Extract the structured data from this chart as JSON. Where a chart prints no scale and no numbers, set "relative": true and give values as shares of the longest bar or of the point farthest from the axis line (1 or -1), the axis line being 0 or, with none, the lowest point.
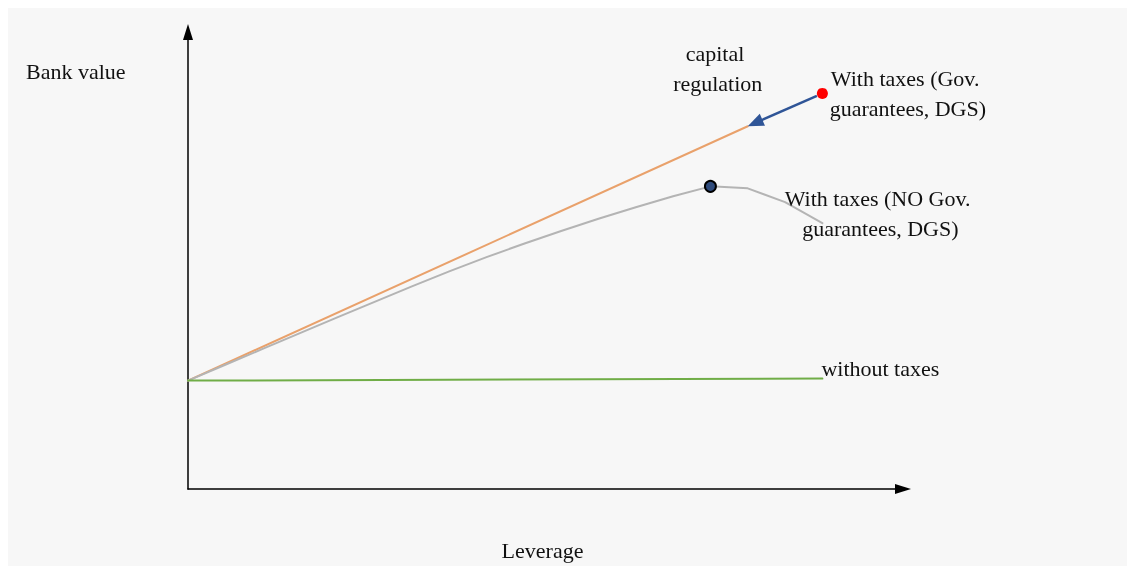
{
  "chart_data": {
    "type": "line",
    "relative": true,
    "xlabel": "Leverage",
    "ylabel": "Bank value",
    "grid": false,
    "marker": "none",
    "line_style": "solid",
    "annotations": [
      "capital regulation"
    ],
    "categories": [
      null,
      null,
      null,
      null,
      null,
      null,
      null,
      null,
      null,
      null,
      null,
      null,
      null,
      null,
      null,
      null,
      null,
      null,
      null,
      null
    ],
    "series": [
      {
        "color": "#e9a16b",
        "values": [
          0.274,
          null,
          null,
          null,
          null,
          null,
          null,
          null,
          null,
          null,
          null,
          null,
          null,
          null,
          null,
          0.917,
          null,
          null,
          null,
          null
        ]
      },
      {
        "name": "With taxes (NO Gov. guarantees, DGS)",
        "color": "#b4b4b4",
        "values": [
          0.274,
          0.314,
          0.354,
          0.394,
          0.434,
          0.473,
          0.512,
          0.55,
          0.586,
          0.62,
          0.652,
          0.683,
          0.712,
          0.74,
          0.765,
          0.76,
          0.725,
          0.672,
          null,
          null
        ]
      },
      {
        "name": "without taxes",
        "color": "#70ad47",
        "values": [
          0.274,
          null,
          null,
          null,
          null,
          null,
          null,
          null,
          null,
          null,
          null,
          null,
          null,
          null,
          null,
          null,
          null,
          0.279,
          null,
          null
        ]
      },
      {
        "name": "With taxes (Gov. guarantees, DGS)",
        "marker": "circle",
        "color": "#ff0000",
        "values": [
          null,
          null,
          null,
          null,
          null,
          null,
          null,
          null,
          null,
          null,
          null,
          null,
          null,
          null,
          null,
          null,
          null,
          1.0,
          null,
          null
        ]
      },
      {
        "marker": "circle",
        "color": "#2f4b7c",
        "values": [
          null,
          null,
          null,
          null,
          null,
          null,
          null,
          null,
          null,
          null,
          null,
          null,
          null,
          null,
          0.765,
          null,
          null,
          null,
          null,
          null
        ]
      }
    ]
  }
}
